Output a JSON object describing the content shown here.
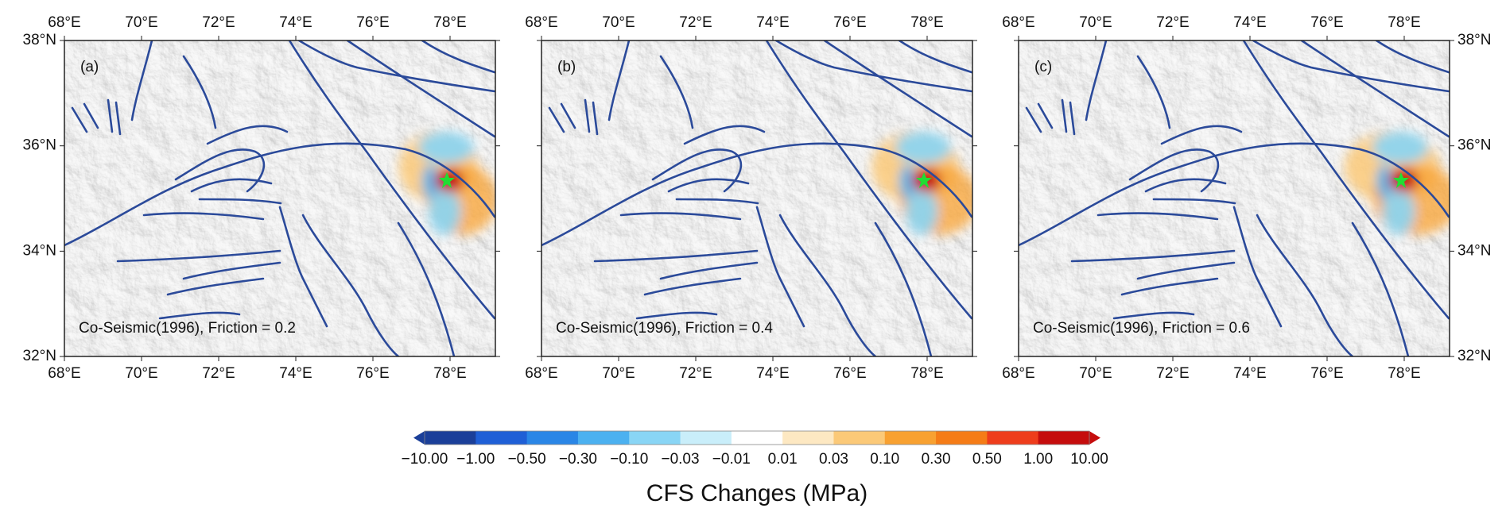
{
  "panels": [
    {
      "label": "(a)",
      "annotation": "Co-Seismic(1996), Friction = 0.2"
    },
    {
      "label": "(b)",
      "annotation": "Co-Seismic(1996), Friction = 0.4"
    },
    {
      "label": "(c)",
      "annotation": "Co-Seismic(1996), Friction = 0.6"
    }
  ],
  "x_tick_labels": [
    "68°E",
    "70°E",
    "72°E",
    "74°E",
    "76°E",
    "78°E"
  ],
  "y_tick_labels": [
    "38°N",
    "36°N",
    "34°N",
    "32°N"
  ],
  "colorbar": {
    "title": "CFS Changes (MPa)",
    "labels": [
      "−10.00",
      "−1.00",
      "−0.50",
      "−0.30",
      "−0.10",
      "−0.03",
      "−0.01",
      "0.01",
      "0.03",
      "0.10",
      "0.30",
      "0.50",
      "1.00",
      "10.00"
    ],
    "colors": [
      "#1b3f99",
      "#1f5fd6",
      "#2a86e6",
      "#4cb1f0",
      "#89d5f5",
      "#c9eefa",
      "#ffffff",
      "#fde8c2",
      "#fbc978",
      "#f8a131",
      "#f57c17",
      "#ee3d1c",
      "#c50d0d"
    ]
  }
}
